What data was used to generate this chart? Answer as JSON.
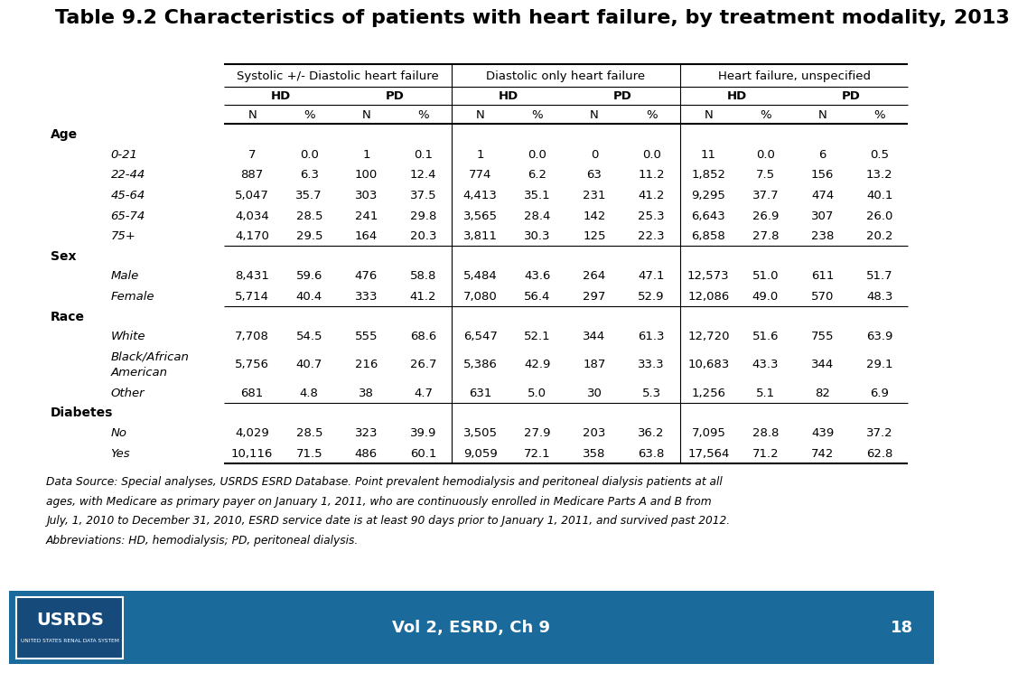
{
  "title": "Table 9.2 Characteristics of patients with heart failure, by treatment modality, 2013",
  "col_group_headers": [
    "Systolic +/- Diastolic heart failure",
    "Diastolic only heart failure",
    "Heart failure, unspecified"
  ],
  "col_subgroup_headers": [
    "HD",
    "PD",
    "HD",
    "PD",
    "HD",
    "PD"
  ],
  "col_detail_headers": [
    "N",
    "%",
    "N",
    "%",
    "N",
    "%",
    "N",
    "%",
    "N",
    "%",
    "N",
    "%"
  ],
  "row_groups": [
    {
      "group_label": "Age",
      "rows": [
        {
          "label": "0-21",
          "values": [
            "7",
            "0.0",
            "1",
            "0.1",
            "1",
            "0.0",
            "0",
            "0.0",
            "11",
            "0.0",
            "6",
            "0.5"
          ]
        },
        {
          "label": "22-44",
          "values": [
            "887",
            "6.3",
            "100",
            "12.4",
            "774",
            "6.2",
            "63",
            "11.2",
            "1,852",
            "7.5",
            "156",
            "13.2"
          ]
        },
        {
          "label": "45-64",
          "values": [
            "5,047",
            "35.7",
            "303",
            "37.5",
            "4,413",
            "35.1",
            "231",
            "41.2",
            "9,295",
            "37.7",
            "474",
            "40.1"
          ]
        },
        {
          "label": "65-74",
          "values": [
            "4,034",
            "28.5",
            "241",
            "29.8",
            "3,565",
            "28.4",
            "142",
            "25.3",
            "6,643",
            "26.9",
            "307",
            "26.0"
          ]
        },
        {
          "label": "75+",
          "values": [
            "4,170",
            "29.5",
            "164",
            "20.3",
            "3,811",
            "30.3",
            "125",
            "22.3",
            "6,858",
            "27.8",
            "238",
            "20.2"
          ]
        }
      ]
    },
    {
      "group_label": "Sex",
      "rows": [
        {
          "label": "Male",
          "values": [
            "8,431",
            "59.6",
            "476",
            "58.8",
            "5,484",
            "43.6",
            "264",
            "47.1",
            "12,573",
            "51.0",
            "611",
            "51.7"
          ]
        },
        {
          "label": "Female",
          "values": [
            "5,714",
            "40.4",
            "333",
            "41.2",
            "7,080",
            "56.4",
            "297",
            "52.9",
            "12,086",
            "49.0",
            "570",
            "48.3"
          ]
        }
      ]
    },
    {
      "group_label": "Race",
      "rows": [
        {
          "label": "White",
          "values": [
            "7,708",
            "54.5",
            "555",
            "68.6",
            "6,547",
            "52.1",
            "344",
            "61.3",
            "12,720",
            "51.6",
            "755",
            "63.9"
          ]
        },
        {
          "label": "Black/African\nAmerican",
          "values": [
            "5,756",
            "40.7",
            "216",
            "26.7",
            "5,386",
            "42.9",
            "187",
            "33.3",
            "10,683",
            "43.3",
            "344",
            "29.1"
          ]
        },
        {
          "label": "Other",
          "values": [
            "681",
            "4.8",
            "38",
            "4.7",
            "631",
            "5.0",
            "30",
            "5.3",
            "1,256",
            "5.1",
            "82",
            "6.9"
          ]
        }
      ]
    },
    {
      "group_label": "Diabetes",
      "rows": [
        {
          "label": "No",
          "values": [
            "4,029",
            "28.5",
            "323",
            "39.9",
            "3,505",
            "27.9",
            "203",
            "36.2",
            "7,095",
            "28.8",
            "439",
            "37.2"
          ]
        },
        {
          "label": "Yes",
          "values": [
            "10,116",
            "71.5",
            "486",
            "60.1",
            "9,059",
            "72.1",
            "358",
            "63.8",
            "17,564",
            "71.2",
            "742",
            "62.8"
          ]
        }
      ]
    }
  ],
  "footnote_lines": [
    "Data Source: Special analyses, USRDS ESRD Database. Point prevalent hemodialysis and peritoneal dialysis patients at all",
    "ages, with Medicare as primary payer on January 1, 2011, who are continuously enrolled in Medicare Parts A and B from",
    "July, 1, 2010 to December 31, 2010, ESRD service date is at least 90 days prior to January 1, 2011, and survived past 2012.",
    "Abbreviations: HD, hemodialysis; PD, peritoneal dialysis."
  ],
  "footer_text": "Vol 2, ESRD, Ch 9",
  "footer_page": "18",
  "footer_bg": "#1B6A9C",
  "background_color": "#ffffff",
  "title_fontsize": 16,
  "table_fontsize": 9.5,
  "header_fontsize": 9.5,
  "footer_fontsize": 13
}
